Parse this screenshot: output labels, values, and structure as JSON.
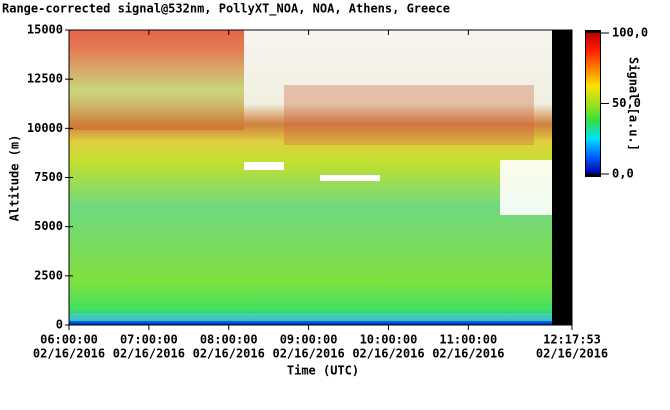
{
  "chart_data": {
    "type": "heatmap",
    "title": "Range-corrected signal@532nm, PollyXT_NOA, NOA, Athens, Greece",
    "xlabel": "Time (UTC)",
    "ylabel": "Altitude (m)",
    "colorbar_label": "Signal [a.u.]",
    "xlim": [
      "2016-02-16T06:00:00",
      "2016-02-16T12:17:53"
    ],
    "xticks": [
      {
        "value": "2016-02-16T06:00:00",
        "label": [
          "06:00:00",
          "02/16/2016"
        ]
      },
      {
        "value": "2016-02-16T07:00:00",
        "label": [
          "07:00:00",
          "02/16/2016"
        ]
      },
      {
        "value": "2016-02-16T08:00:00",
        "label": [
          "08:00:00",
          "02/16/2016"
        ]
      },
      {
        "value": "2016-02-16T09:00:00",
        "label": [
          "09:00:00",
          "02/16/2016"
        ]
      },
      {
        "value": "2016-02-16T10:00:00",
        "label": [
          "10:00:00",
          "02/16/2016"
        ]
      },
      {
        "value": "2016-02-16T11:00:00",
        "label": [
          "11:00:00",
          "02/16/2016"
        ]
      },
      {
        "value": "2016-02-16T12:17:53",
        "label": [
          "12:17:53",
          "02/16/2016"
        ]
      }
    ],
    "ylim": [
      0,
      15000
    ],
    "yticks": [
      0,
      2500,
      5000,
      7500,
      10000,
      12500,
      15000
    ],
    "clim": [
      0,
      100
    ],
    "cticks": [
      {
        "value": 0,
        "label": "0,0"
      },
      {
        "value": 50,
        "label": "50,0"
      },
      {
        "value": 100,
        "label": "100,0"
      }
    ],
    "colormap": [
      "#0000a0",
      "#0060ff",
      "#00e0ff",
      "#30e040",
      "#a0e020",
      "#ffe000",
      "#ff8000",
      "#ff2000",
      "#c00000"
    ]
  }
}
